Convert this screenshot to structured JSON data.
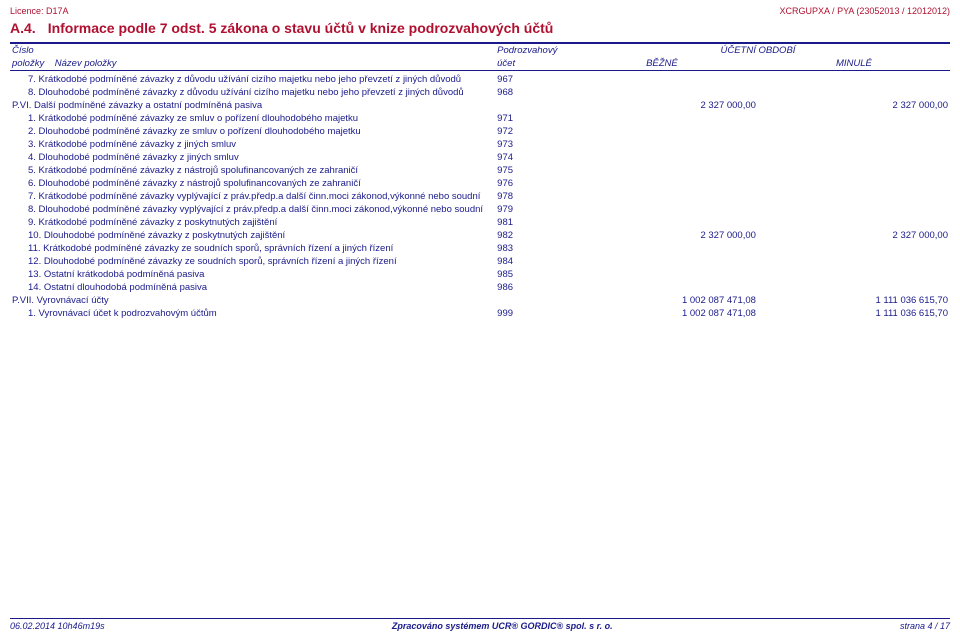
{
  "header": {
    "left": "Licence: D17A",
    "right": "XCRGUPXA / PYA (23052013 / 12012012)"
  },
  "section": {
    "number": "A.4.",
    "title": "Informace podle 7 odst. 5 zákona o stavu účtů v knize podrozvahových účtů"
  },
  "table": {
    "head1": {
      "c1": "Číslo",
      "c2": "Podrozvahový",
      "c3": "ÚČETNÍ OBDOBÍ"
    },
    "head2": {
      "c1": "položky",
      "c1b": "Název položky",
      "c2": "účet",
      "c3": "BĚŽNÉ",
      "c4": "MINULÉ"
    },
    "rows": [
      {
        "name": "7. Krátkodobé podmíněné závazky z důvodu užívání cizího majetku nebo jeho převzetí z jiných důvodů",
        "acc": "967",
        "cur": "",
        "prev": "",
        "bold": false
      },
      {
        "name": "8. Dlouhodobé podmíněné závazky z důvodu užívání cizího majetku nebo jeho převzetí z jiných důvodů",
        "acc": "968",
        "cur": "",
        "prev": "",
        "bold": false
      },
      {
        "name": "P.VI.    Další podmíněné závazky a ostatní podmíněná pasiva",
        "acc": "",
        "cur": "2 327 000,00",
        "prev": "2 327 000,00",
        "bold": true
      },
      {
        "name": "1. Krátkodobé podmíněné závazky ze smluv o pořízení dlouhodobého majetku",
        "acc": "971",
        "cur": "",
        "prev": "",
        "bold": false
      },
      {
        "name": "2. Dlouhodobé podmíněné závazky ze smluv o pořízení dlouhodobého majetku",
        "acc": "972",
        "cur": "",
        "prev": "",
        "bold": false
      },
      {
        "name": "3. Krátkodobé podmíněné závazky z jiných smluv",
        "acc": "973",
        "cur": "",
        "prev": "",
        "bold": false
      },
      {
        "name": "4. Dlouhodobé podmíněné závazky z jiných smluv",
        "acc": "974",
        "cur": "",
        "prev": "",
        "bold": false
      },
      {
        "name": "5. Krátkodobé podmíněné závazky z nástrojů spolufinancovaných ze zahraničí",
        "acc": "975",
        "cur": "",
        "prev": "",
        "bold": false
      },
      {
        "name": "6. Dlouhodobé podmíněné závazky z nástrojů spolufinancovaných ze zahraničí",
        "acc": "976",
        "cur": "",
        "prev": "",
        "bold": false
      },
      {
        "name": "7. Krátkodobé podmíněné závazky vyplývající z práv.předp.a další činn.moci zákonod,výkonné nebo soudní",
        "acc": "978",
        "cur": "",
        "prev": "",
        "bold": false
      },
      {
        "name": "8. Dlouhodobé podmíněné závazky vyplývající z práv.předp.a další činn.moci zákonod,výkonné nebo soudní",
        "acc": "979",
        "cur": "",
        "prev": "",
        "bold": false
      },
      {
        "name": "9. Krátkodobé podmíněné závazky z poskytnutých zajištění",
        "acc": "981",
        "cur": "",
        "prev": "",
        "bold": false
      },
      {
        "name": "10. Dlouhodobé podmíněné závazky z poskytnutých zajištění",
        "acc": "982",
        "cur": "2 327 000,00",
        "prev": "2 327 000,00",
        "bold": false
      },
      {
        "name": "11. Krátkodobé podmíněné závazky ze soudních sporů, správních řízení a jiných řízení",
        "acc": "983",
        "cur": "",
        "prev": "",
        "bold": false
      },
      {
        "name": "12. Dlouhodobé podmíněné závazky ze soudních sporů, správních řízení a jiných řízení",
        "acc": "984",
        "cur": "",
        "prev": "",
        "bold": false
      },
      {
        "name": "13. Ostatní krátkodobá podmíněná pasiva",
        "acc": "985",
        "cur": "",
        "prev": "",
        "bold": false
      },
      {
        "name": "14. Ostatní dlouhodobá podmíněná pasiva",
        "acc": "986",
        "cur": "",
        "prev": "",
        "bold": false
      },
      {
        "name": "P.VII.   Vyrovnávací účty",
        "acc": "",
        "cur": "1 002 087 471,08",
        "prev": "1 111 036 615,70",
        "bold": true
      },
      {
        "name": "1. Vyrovnávací účet k podrozvahovým účtům",
        "acc": "999",
        "cur": "1 002 087 471,08",
        "prev": "1 111 036 615,70",
        "bold": false
      }
    ]
  },
  "footer": {
    "left": "06.02.2014 10h46m19s",
    "center": "Zpracováno systémem UCR® GORDIC® spol. s  r. o.",
    "right": "strana 4 / 17"
  }
}
